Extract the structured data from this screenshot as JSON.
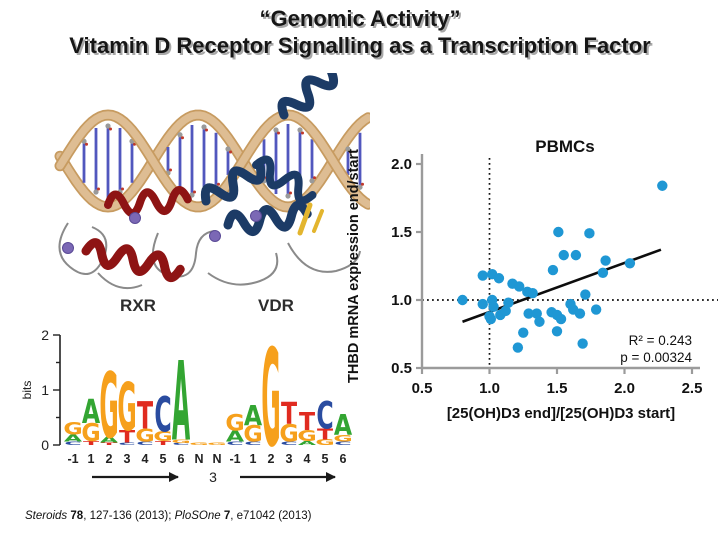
{
  "slide": {
    "title_line1": "“Genomic Activity”",
    "title_line2": "Vitamin D Receptor Signalling as a Transcription Factor",
    "background": "#ffffff",
    "title_color": "#161616",
    "title_shadow_color": "#a8a8a8"
  },
  "structure_figure": {
    "label_rxr": "RXR",
    "label_vdr": "VDR",
    "colors": {
      "dna_light": "#debd93",
      "dna_dark": "#c79b60",
      "base_pair": "#5157be",
      "phosphate": "#9a9a9a",
      "oxygen": "#c0392b",
      "rxr_ribbon": "#8e1414",
      "vdr_ribbon": "#1c3b66",
      "beta_sheet": "#e3b52e",
      "loop": "#8a8a8a",
      "zinc": "#7b68b5"
    }
  },
  "chart_data": [
    {
      "type": "scatter",
      "title": "PBMCs",
      "xlabel": "[25(OH)D3 end]/[25(OH)D3 start]",
      "ylabel": "THBD mRNA expression end/start",
      "xlim": [
        0.5,
        2.5
      ],
      "ylim": [
        0.5,
        2.0
      ],
      "xticks": [
        "0.5",
        "1.0",
        "1.5",
        "2.0",
        "2.5"
      ],
      "yticks": [
        "0.5",
        "1.0",
        "1.5",
        "2.0"
      ],
      "grid": false,
      "legend": "none",
      "point_color": "#1f97d4",
      "axis_color": "#9b9b9b",
      "annotations": [
        "R² = 0.243",
        "p = 0.00324"
      ],
      "reference_lines": {
        "vertical_x": 1.0,
        "horizontal_y": 1.0,
        "style": "dotted"
      },
      "trendline": {
        "x1": 0.8,
        "y1": 0.84,
        "x2": 2.27,
        "y2": 1.37
      },
      "points": [
        [
          0.8,
          1.0
        ],
        [
          0.95,
          1.18
        ],
        [
          1.02,
          1.19
        ],
        [
          1.07,
          1.16
        ],
        [
          0.95,
          0.97
        ],
        [
          1.02,
          1.0
        ],
        [
          1.03,
          0.95
        ],
        [
          1.0,
          0.88
        ],
        [
          1.01,
          0.86
        ],
        [
          1.08,
          0.89
        ],
        [
          1.12,
          0.92
        ],
        [
          1.14,
          0.98
        ],
        [
          1.17,
          1.12
        ],
        [
          1.22,
          1.1
        ],
        [
          1.21,
          0.65
        ],
        [
          1.25,
          0.76
        ],
        [
          1.28,
          1.06
        ],
        [
          1.32,
          1.05
        ],
        [
          1.29,
          0.9
        ],
        [
          1.35,
          0.9
        ],
        [
          1.37,
          0.84
        ],
        [
          1.46,
          0.91
        ],
        [
          1.47,
          1.22
        ],
        [
          1.5,
          0.89
        ],
        [
          1.5,
          0.77
        ],
        [
          1.51,
          1.5
        ],
        [
          1.53,
          0.86
        ],
        [
          1.55,
          1.33
        ],
        [
          1.6,
          0.97
        ],
        [
          1.62,
          0.93
        ],
        [
          1.64,
          1.33
        ],
        [
          1.67,
          0.9
        ],
        [
          1.69,
          0.68
        ],
        [
          1.71,
          1.04
        ],
        [
          1.74,
          1.49
        ],
        [
          1.79,
          0.93
        ],
        [
          1.84,
          1.2
        ],
        [
          1.86,
          1.29
        ],
        [
          2.04,
          1.27
        ],
        [
          2.28,
          1.84
        ]
      ]
    },
    {
      "type": "sequence_logo",
      "ylabel": "bits",
      "yticks": [
        0,
        1,
        2
      ],
      "ylim": [
        0,
        2
      ],
      "group_labels": [
        "RXR",
        "VDR"
      ],
      "spacer_label": "3",
      "letter_colors": {
        "A": "#33a532",
        "C": "#2a4ca0",
        "G": "#f6a01c",
        "T": "#e02b20"
      },
      "positions": [
        {
          "label": "-1",
          "stack": [
            [
              "G",
              0.22
            ],
            [
              "A",
              0.13
            ],
            [
              "C",
              0.06
            ]
          ]
        },
        {
          "label": "1",
          "stack": [
            [
              "A",
              0.44
            ],
            [
              "G",
              0.33
            ],
            [
              "T",
              0.07
            ]
          ]
        },
        {
          "label": "2",
          "stack": [
            [
              "G",
              1.2
            ],
            [
              "A",
              0.1
            ],
            [
              "T",
              0.05
            ]
          ]
        },
        {
          "label": "3",
          "stack": [
            [
              "G",
              0.87
            ],
            [
              "T",
              0.22
            ],
            [
              "C",
              0.05
            ]
          ]
        },
        {
          "label": "4",
          "stack": [
            [
              "T",
              0.5
            ],
            [
              "G",
              0.24
            ],
            [
              "C",
              0.06
            ]
          ]
        },
        {
          "label": "5",
          "stack": [
            [
              "C",
              0.64
            ],
            [
              "G",
              0.18
            ],
            [
              "T",
              0.07
            ]
          ]
        },
        {
          "label": "6",
          "stack": [
            [
              "A",
              1.45
            ],
            [
              "G",
              0.06
            ],
            [
              "C",
              0.04
            ]
          ]
        },
        {
          "label": "N",
          "stack": [
            [
              "G",
              0.04
            ]
          ]
        },
        {
          "label": "N",
          "stack": [
            [
              "G",
              0.04
            ]
          ]
        },
        {
          "label": "-1",
          "stack": [
            [
              "G",
              0.3
            ],
            [
              "A",
              0.2
            ],
            [
              "C",
              0.06
            ]
          ]
        },
        {
          "label": "1",
          "stack": [
            [
              "A",
              0.36
            ],
            [
              "G",
              0.3
            ],
            [
              "C",
              0.06
            ]
          ]
        },
        {
          "label": "2",
          "stack": [
            [
              "G",
              1.78
            ]
          ]
        },
        {
          "label": "3",
          "stack": [
            [
              "T",
              0.4
            ],
            [
              "G",
              0.32
            ],
            [
              "C",
              0.06
            ]
          ]
        },
        {
          "label": "4",
          "stack": [
            [
              "T",
              0.33
            ],
            [
              "G",
              0.2
            ],
            [
              "A",
              0.07
            ]
          ]
        },
        {
          "label": "5",
          "stack": [
            [
              "C",
              0.5
            ],
            [
              "T",
              0.2
            ],
            [
              "G",
              0.1
            ]
          ]
        },
        {
          "label": "6",
          "stack": [
            [
              "A",
              0.38
            ],
            [
              "G",
              0.12
            ],
            [
              "C",
              0.06
            ]
          ]
        }
      ]
    }
  ],
  "citation": {
    "segments": [
      {
        "t": "Steroids",
        "s": "i"
      },
      {
        "t": "  ",
        "s": "n"
      },
      {
        "t": "78",
        "s": "b"
      },
      {
        "t": ", 127-136 (2013); ",
        "s": "n"
      },
      {
        "t": "PloSOne",
        "s": "i"
      },
      {
        "t": " ",
        "s": "n"
      },
      {
        "t": "7",
        "s": "b"
      },
      {
        "t": ", e71042 (2013)",
        "s": "n"
      }
    ]
  }
}
